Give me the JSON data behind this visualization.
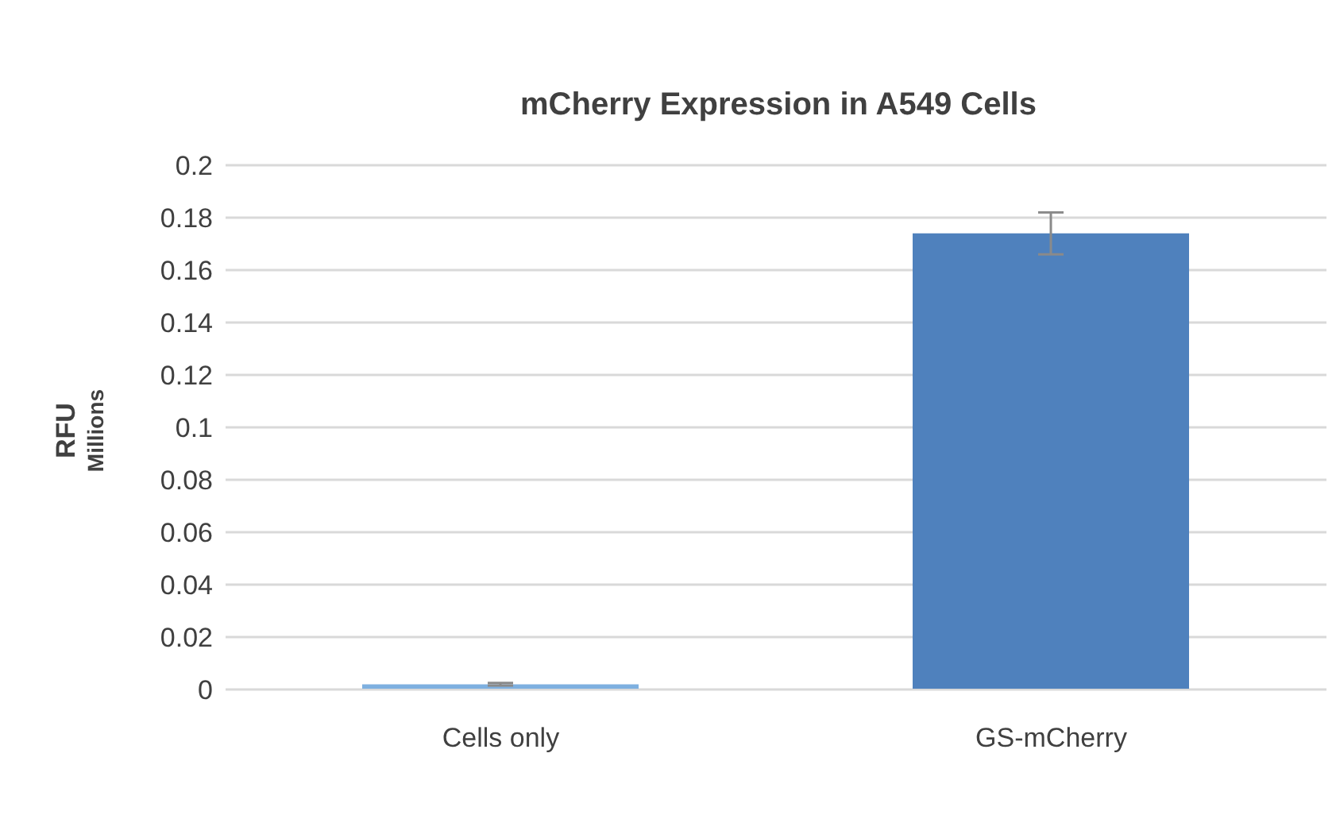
{
  "chart_data": {
    "type": "bar",
    "title": "mCherry Expression in A549 Cells",
    "ylabel": "RFU",
    "annotations": [
      "Millions"
    ],
    "categories": [
      "Cells only",
      "GS-mCherry"
    ],
    "values": [
      0.002,
      0.174
    ],
    "errors": [
      0.0005,
      0.008
    ],
    "colors": [
      "#7eb0e0",
      "#4f81bd"
    ],
    "ylim": [
      0,
      0.2
    ],
    "yticks": [
      0,
      0.02,
      0.04,
      0.06,
      0.08,
      0.1,
      0.12,
      0.14,
      0.16,
      0.18,
      0.2
    ],
    "grid": "y",
    "legend": false
  }
}
